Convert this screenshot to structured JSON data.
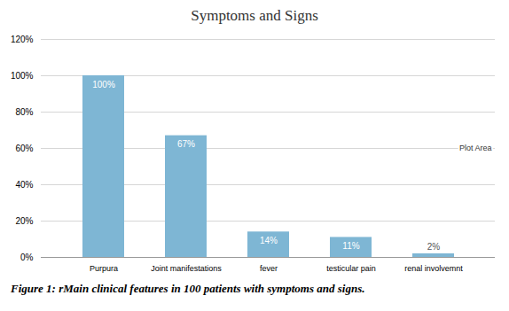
{
  "chart_data": {
    "type": "bar",
    "title": "Symptoms and Signs",
    "categories": [
      "Purpura",
      "Joint manifestations",
      "fever",
      "testicular pain",
      "renal involvemnt"
    ],
    "values": [
      100,
      67,
      14,
      11,
      2
    ],
    "value_labels": [
      "100%",
      "67%",
      "14%",
      "11%",
      "2%"
    ],
    "color": "#7EB6D4",
    "ylim": [
      0,
      120
    ],
    "yticks": [
      {
        "value": 0,
        "label": "0%"
      },
      {
        "value": 20,
        "label": "20%"
      },
      {
        "value": 40,
        "label": "40%"
      },
      {
        "value": 60,
        "label": "60%"
      },
      {
        "value": 80,
        "label": "80%"
      },
      {
        "value": 100,
        "label": "100%"
      },
      {
        "value": 120,
        "label": "120%"
      }
    ],
    "grid": true,
    "data_labels": true,
    "annotations": [
      "Plot Area"
    ],
    "caption": "Figure 1: rMain clinical features in 100 patients with symptoms and signs."
  }
}
